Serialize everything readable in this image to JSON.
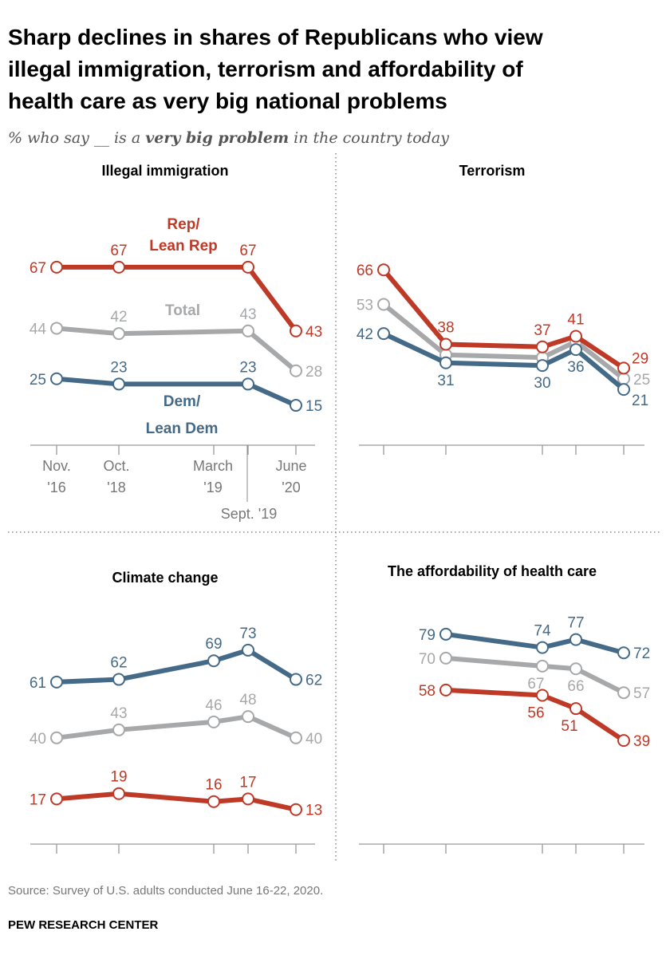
{
  "title_lines": [
    "Sharp declines in shares of Republicans who view",
    "illegal immigration, terrorism and affordability of",
    "health care as very big national problems"
  ],
  "subtitle": {
    "pre": "% who say __ is a ",
    "emphasis": "very big problem",
    "post": " in the country today"
  },
  "source": "Source: Survey of U.S. adults conducted June 16-22, 2020.",
  "brand": "PEW RESEARCH CENTER",
  "colors": {
    "rep": "#bf3927",
    "total": "#a6a8aa",
    "dem": "#446a88"
  },
  "series_labels": {
    "rep": [
      "Rep/",
      "Lean Rep"
    ],
    "total": [
      "Total"
    ],
    "dem": [
      "Dem/",
      "Lean Dem"
    ]
  },
  "chart_data": [
    {
      "type": "line",
      "title": "Illegal immigration",
      "categories": [
        "Nov. '16",
        "Oct. '18",
        "March '19",
        "Sept. '19",
        "June '20"
      ],
      "x_tick_labels": [
        [
          "Nov.",
          "'16"
        ],
        [
          "Oct.",
          "'18"
        ],
        [
          "March",
          "'19"
        ],
        [
          "Sept. '19"
        ],
        [
          "June",
          "'20"
        ]
      ],
      "ylim": [
        0,
        100
      ],
      "grid": false,
      "series": [
        {
          "name": "Rep/Lean Rep",
          "key": "rep",
          "values": [
            67,
            67,
            null,
            67,
            43
          ]
        },
        {
          "name": "Total",
          "key": "total",
          "values": [
            44,
            42,
            null,
            43,
            28
          ]
        },
        {
          "name": "Dem/Lean Dem",
          "key": "dem",
          "values": [
            25,
            23,
            null,
            23,
            15
          ]
        }
      ]
    },
    {
      "type": "line",
      "title": "Terrorism",
      "categories": [
        "Nov. '16",
        "Oct. '18",
        "March '19",
        "Sept. '19",
        "June '20"
      ],
      "ylim": [
        0,
        100
      ],
      "grid": false,
      "series": [
        {
          "key": "rep",
          "values": [
            66,
            38,
            37,
            41,
            29
          ]
        },
        {
          "key": "total",
          "values": [
            53,
            34,
            33,
            39,
            25
          ]
        },
        {
          "key": "dem",
          "values": [
            42,
            31,
            30,
            36,
            21
          ]
        }
      ]
    },
    {
      "type": "line",
      "title": "Climate change",
      "categories": [
        "Nov. '16",
        "Oct. '18",
        "March '19",
        "Sept. '19",
        "June '20"
      ],
      "ylim": [
        0,
        100
      ],
      "grid": false,
      "series": [
        {
          "key": "dem",
          "values": [
            61,
            62,
            69,
            73,
            62
          ]
        },
        {
          "key": "total",
          "values": [
            40,
            43,
            46,
            48,
            40
          ]
        },
        {
          "key": "rep",
          "values": [
            17,
            19,
            16,
            17,
            13
          ]
        }
      ]
    },
    {
      "type": "line",
      "title": "The affordability of health care",
      "categories": [
        "Nov. '16",
        "Oct. '18",
        "March '19",
        "Sept. '19",
        "June '20"
      ],
      "ylim": [
        0,
        100
      ],
      "grid": false,
      "series": [
        {
          "key": "dem",
          "values": [
            null,
            79,
            74,
            77,
            72
          ]
        },
        {
          "key": "total",
          "values": [
            null,
            70,
            67,
            66,
            57
          ]
        },
        {
          "key": "rep",
          "values": [
            null,
            58,
            56,
            51,
            39
          ]
        }
      ]
    }
  ]
}
